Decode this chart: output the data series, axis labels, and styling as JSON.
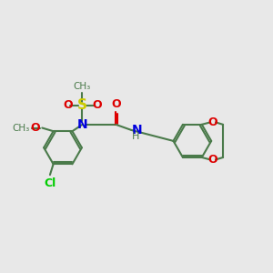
{
  "bg_color": "#e8e8e8",
  "bond_color": "#4a7a4a",
  "bw": 1.5,
  "N_color": "#0000dd",
  "O_color": "#dd0000",
  "S_color": "#cccc00",
  "Cl_color": "#00cc00",
  "figsize": [
    3.0,
    3.0
  ],
  "dpi": 100,
  "xlim": [
    0,
    12
  ],
  "ylim": [
    0,
    10
  ]
}
